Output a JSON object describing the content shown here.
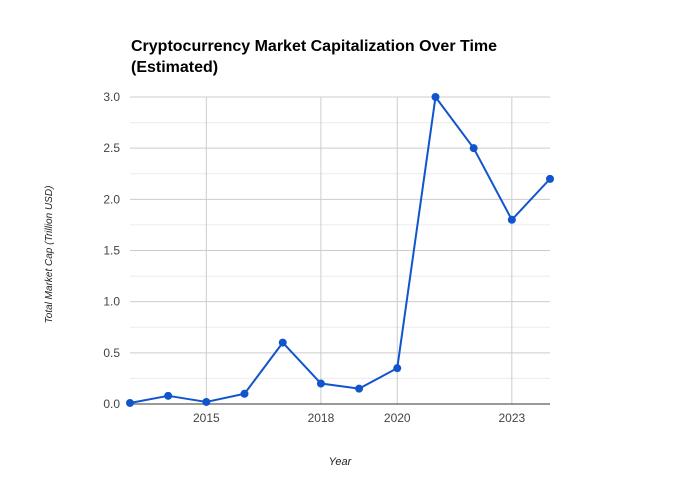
{
  "chart_data": {
    "type": "line",
    "title": "Cryptocurrency Market Capitalization Over Time (Estimated)",
    "xlabel": "Year",
    "ylabel": "Total Market Cap (Trillion USD)",
    "x_ticks": [
      "2015",
      "2018",
      "2020",
      "2023"
    ],
    "y_ticks": [
      "0.0",
      "0.5",
      "1.0",
      "1.5",
      "2.0",
      "2.5",
      "3.0"
    ],
    "ylim": [
      0,
      3.0
    ],
    "grid": true,
    "legend": "none",
    "series": [
      {
        "x": [
          "2013-01-01",
          "2014-01-01",
          "2015-01-01",
          "2016-01-01",
          "2017-01-01",
          "2018-01-01",
          "2019-01-01",
          "2020-01-01",
          "2021-01-01",
          "2022-01-01",
          "2023-01-01",
          "2024-01-01"
        ],
        "values": [
          0.01,
          0.08,
          0.02,
          0.1,
          0.6,
          0.2,
          0.15,
          0.35,
          3.0,
          2.5,
          1.8,
          2.2
        ]
      }
    ],
    "colors": {
      "line": "#1155cc",
      "gridline": "#cccccc",
      "minor_gridline": "#ebebeb",
      "axis": "#333333",
      "tick_text": "#444444"
    }
  }
}
